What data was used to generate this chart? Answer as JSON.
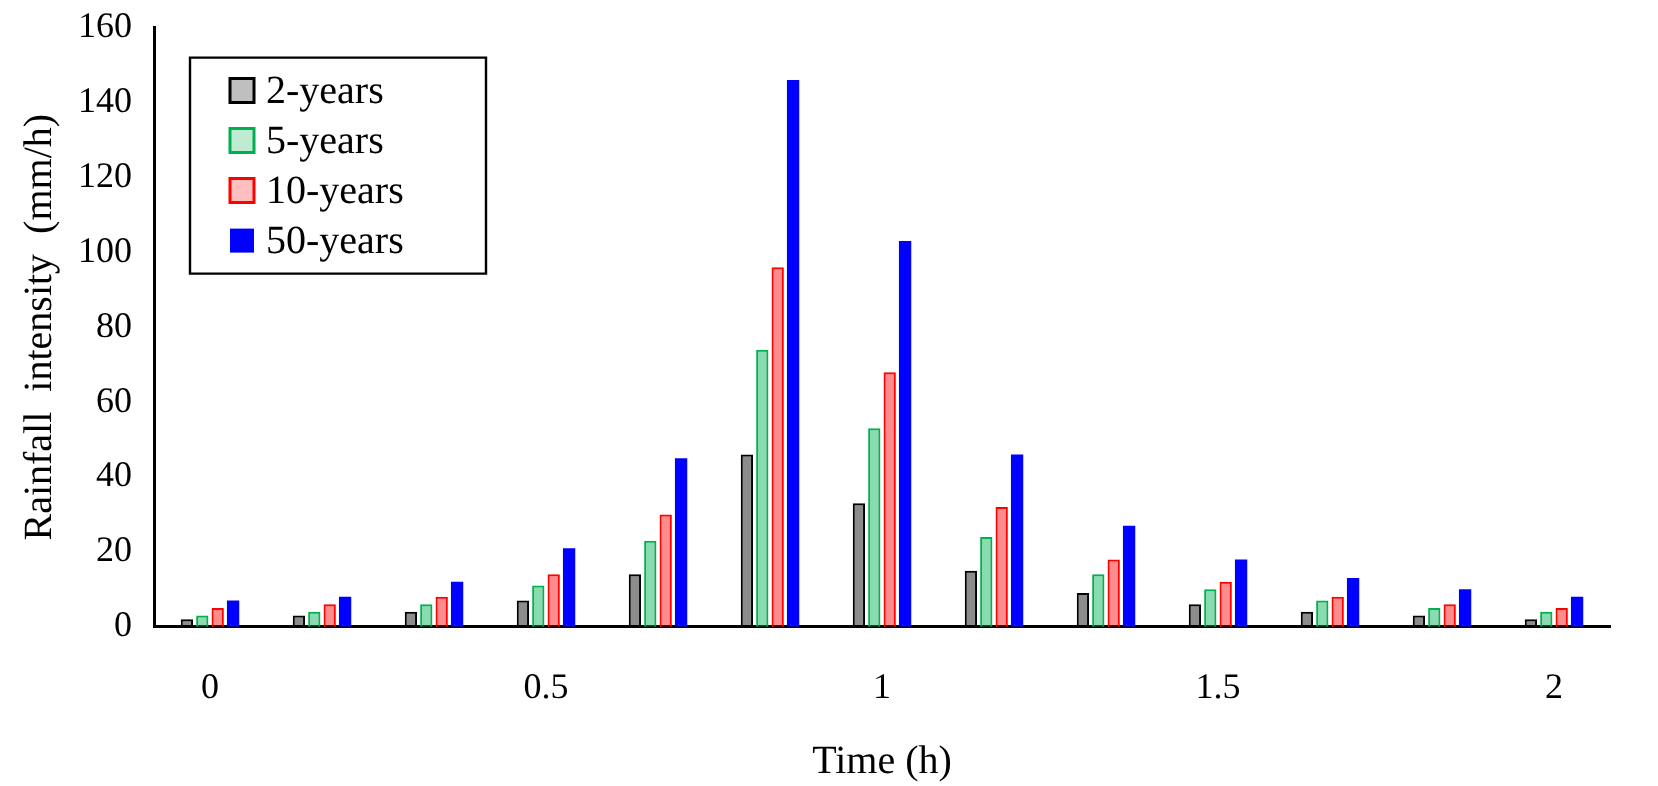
{
  "chart_data": {
    "type": "bar",
    "xlabel": "Time (h)",
    "ylabel": "Rainfall  intensity  (mm/h)",
    "categories": [
      "0",
      null,
      null,
      "0.5",
      null,
      null,
      "1",
      null,
      null,
      "1.5",
      null,
      null,
      "2"
    ],
    "series": [
      {
        "name": "2-years",
        "color": "#000000",
        "values": [
          2,
          3,
          4,
          7,
          14,
          46,
          33,
          15,
          9,
          6,
          4,
          3,
          2
        ]
      },
      {
        "name": "5-years",
        "color": "#00b050",
        "values": [
          3,
          4,
          6,
          11,
          23,
          74,
          53,
          24,
          14,
          10,
          7,
          5,
          4
        ]
      },
      {
        "name": "10-years",
        "color": "#ff0000",
        "values": [
          5,
          6,
          8,
          14,
          30,
          96,
          68,
          32,
          18,
          12,
          8,
          6,
          5
        ]
      },
      {
        "name": "50-years",
        "color": "#0000ff",
        "values": [
          7,
          8,
          12,
          21,
          45,
          146,
          103,
          46,
          27,
          18,
          13,
          10,
          8
        ]
      }
    ],
    "ylim": [
      0,
      160
    ],
    "yticks": [
      0,
      20,
      40,
      60,
      80,
      100,
      120,
      140,
      160
    ],
    "grid": false,
    "legend": "top left"
  }
}
